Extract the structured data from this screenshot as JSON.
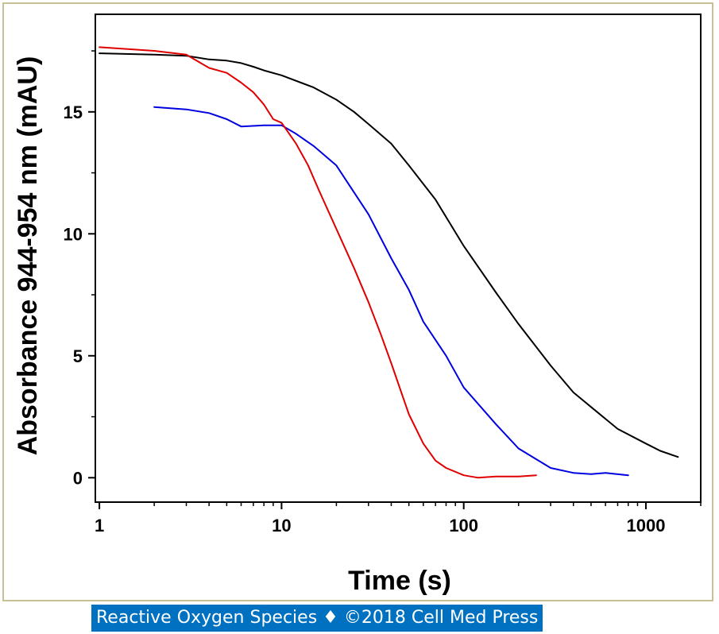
{
  "chart_data": {
    "type": "line",
    "title": "",
    "xlabel": "Time (s)",
    "ylabel": "Absorbance 944-954 nm (mAU)",
    "xscale": "log",
    "xlim": [
      0.95,
      2000
    ],
    "ylim": [
      -1,
      19
    ],
    "xticks": [
      1,
      10,
      100,
      1000
    ],
    "xtick_labels": [
      "1",
      "10",
      "100",
      "1000"
    ],
    "yticks": [
      0,
      5,
      10,
      15
    ],
    "ytick_labels": [
      "0",
      "5",
      "10",
      "15"
    ],
    "grid": false,
    "legend": "none",
    "series": [
      {
        "color": "#000000",
        "points": [
          [
            1,
            17.4
          ],
          [
            2,
            17.35
          ],
          [
            3,
            17.3
          ],
          [
            4,
            17.15
          ],
          [
            5,
            17.1
          ],
          [
            6,
            17.0
          ],
          [
            7,
            16.85
          ],
          [
            8,
            16.7
          ],
          [
            10,
            16.5
          ],
          [
            15,
            16.0
          ],
          [
            20,
            15.5
          ],
          [
            25,
            15.0
          ],
          [
            30,
            14.5
          ],
          [
            40,
            13.7
          ],
          [
            50,
            12.8
          ],
          [
            70,
            11.4
          ],
          [
            100,
            9.5
          ],
          [
            150,
            7.6
          ],
          [
            200,
            6.3
          ],
          [
            300,
            4.6
          ],
          [
            400,
            3.5
          ],
          [
            500,
            2.9
          ],
          [
            700,
            2.0
          ],
          [
            1000,
            1.4
          ],
          [
            1200,
            1.1
          ],
          [
            1500,
            0.85
          ]
        ]
      },
      {
        "color": "#0000e0",
        "points": [
          [
            2,
            15.2
          ],
          [
            3,
            15.1
          ],
          [
            4,
            14.95
          ],
          [
            5,
            14.7
          ],
          [
            6,
            14.4
          ],
          [
            8,
            14.45
          ],
          [
            10,
            14.45
          ],
          [
            12,
            14.1
          ],
          [
            15,
            13.6
          ],
          [
            20,
            12.8
          ],
          [
            25,
            11.7
          ],
          [
            30,
            10.8
          ],
          [
            40,
            9.0
          ],
          [
            50,
            7.7
          ],
          [
            60,
            6.4
          ],
          [
            80,
            5.0
          ],
          [
            100,
            3.7
          ],
          [
            150,
            2.2
          ],
          [
            200,
            1.2
          ],
          [
            300,
            0.4
          ],
          [
            400,
            0.2
          ],
          [
            500,
            0.15
          ],
          [
            600,
            0.2
          ],
          [
            800,
            0.1
          ]
        ]
      },
      {
        "color": "#e00000",
        "points": [
          [
            1,
            17.65
          ],
          [
            2,
            17.5
          ],
          [
            3,
            17.35
          ],
          [
            4,
            16.8
          ],
          [
            5,
            16.6
          ],
          [
            6,
            16.2
          ],
          [
            7,
            15.8
          ],
          [
            8,
            15.3
          ],
          [
            9,
            14.7
          ],
          [
            10,
            14.55
          ],
          [
            12,
            13.7
          ],
          [
            14,
            12.8
          ],
          [
            16,
            11.8
          ],
          [
            20,
            10.2
          ],
          [
            25,
            8.6
          ],
          [
            30,
            7.2
          ],
          [
            35,
            5.9
          ],
          [
            40,
            4.7
          ],
          [
            50,
            2.6
          ],
          [
            60,
            1.4
          ],
          [
            70,
            0.7
          ],
          [
            80,
            0.4
          ],
          [
            100,
            0.1
          ],
          [
            120,
            0.0
          ],
          [
            150,
            0.05
          ],
          [
            200,
            0.05
          ],
          [
            250,
            0.1
          ]
        ]
      }
    ]
  },
  "banner_text": "Reactive Oxygen Species ♦ ©2018 Cell Med Press"
}
